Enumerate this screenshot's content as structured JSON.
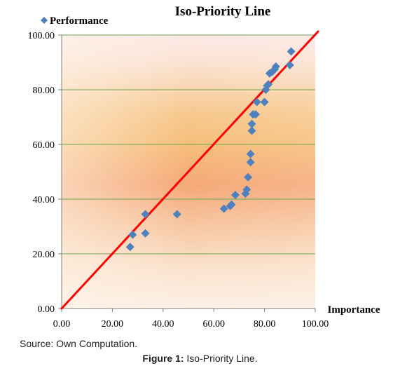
{
  "chart_data": {
    "type": "scatter",
    "title": "Iso-Priority  Line",
    "xlabel": "Importance",
    "ylabel": "",
    "legend": {
      "label": "Performance",
      "placement": "top-left"
    },
    "xlim": [
      0,
      100
    ],
    "ylim": [
      0,
      100
    ],
    "x_ticks": [
      "0.00",
      "20.00",
      "40.00",
      "60.00",
      "80.00",
      "100.00"
    ],
    "y_ticks": [
      "0.00",
      "20.00",
      "40.00",
      "60.00",
      "80.00",
      "100.00"
    ],
    "grid": true,
    "series": [
      {
        "name": "Performance",
        "color": "#4f81bd",
        "marker": "diamond",
        "points": [
          [
            27.0,
            22.5
          ],
          [
            28.0,
            27.0
          ],
          [
            33.0,
            34.5
          ],
          [
            33.0,
            27.5
          ],
          [
            45.5,
            34.5
          ],
          [
            64.0,
            36.5
          ],
          [
            66.5,
            37.5
          ],
          [
            67.0,
            38.0
          ],
          [
            68.5,
            41.5
          ],
          [
            72.5,
            42.0
          ],
          [
            73.0,
            43.5
          ],
          [
            73.5,
            48.0
          ],
          [
            74.5,
            53.5
          ],
          [
            74.5,
            56.5
          ],
          [
            75.0,
            65.0
          ],
          [
            75.0,
            67.5
          ],
          [
            75.5,
            71.0
          ],
          [
            76.5,
            71.0
          ],
          [
            77.0,
            75.5
          ],
          [
            80.0,
            75.5
          ],
          [
            80.5,
            80.0
          ],
          [
            81.0,
            81.5
          ],
          [
            81.5,
            82.0
          ],
          [
            82.0,
            86.0
          ],
          [
            83.0,
            86.5
          ],
          [
            84.0,
            87.5
          ],
          [
            84.5,
            88.5
          ],
          [
            90.0,
            89.0
          ],
          [
            90.5,
            94.0
          ]
        ]
      }
    ],
    "reference_line": {
      "from": [
        0,
        0
      ],
      "to": [
        100,
        100
      ],
      "color": "#ff0000"
    }
  },
  "colors": {
    "marker": "#4f81bd",
    "line": "#ff0000",
    "gridline": "#6aa84f"
  },
  "footer": {
    "source": "Source: Own Computation.",
    "caption_label": "Figure 1:",
    "caption_text": " Iso-Priority Line."
  }
}
